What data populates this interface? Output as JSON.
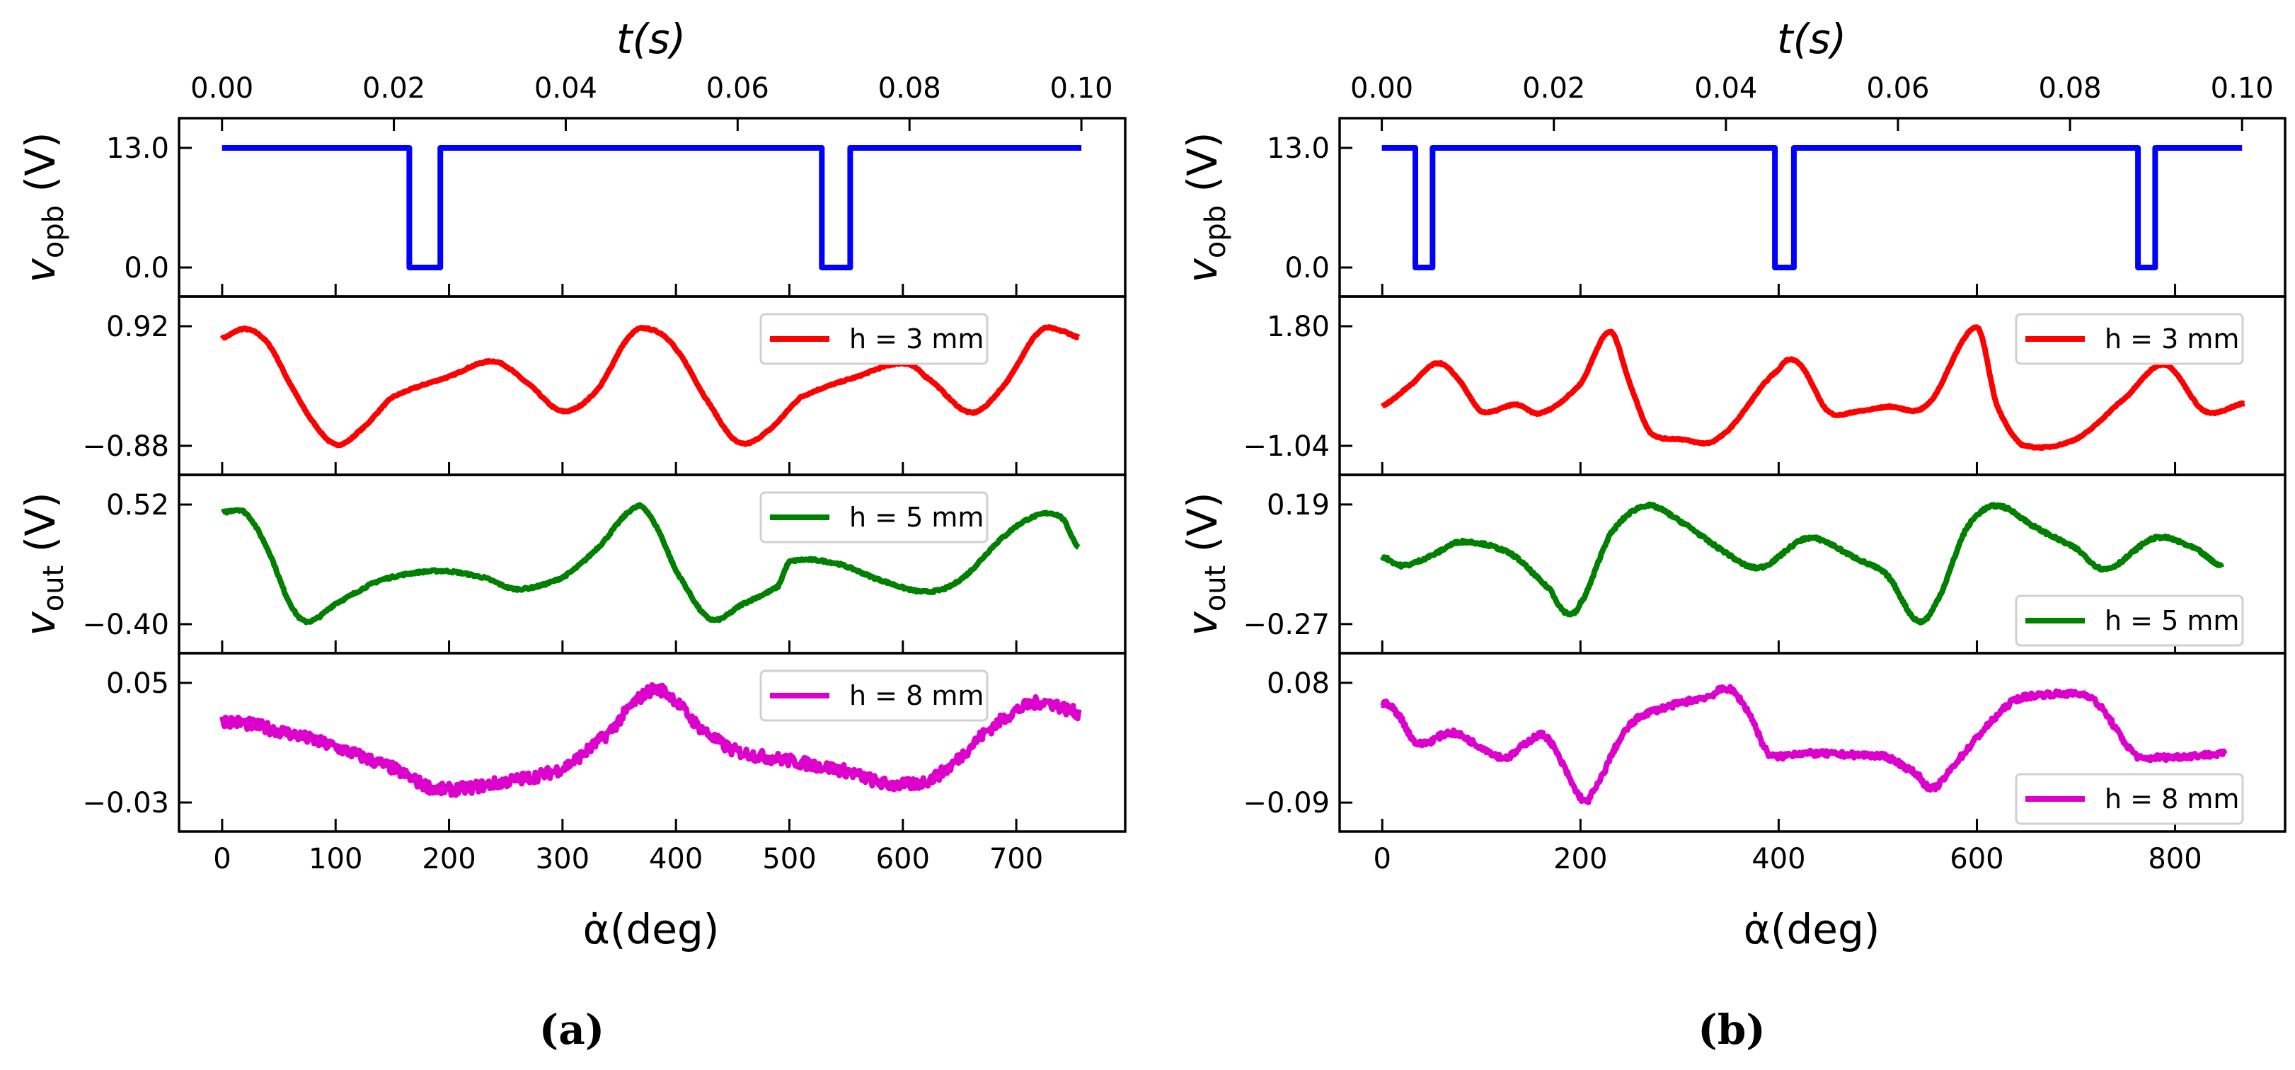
{
  "chart_data": [
    {
      "type": "line",
      "panel": "a",
      "caption": "(a)",
      "top_axis": {
        "label": "t(s)",
        "ticks": [
          "0.00",
          "0.02",
          "0.04",
          "0.06",
          "0.08",
          "0.10"
        ],
        "lim": [
          -0.005,
          0.1051
        ]
      },
      "bottom_axis": {
        "label": "α̇(deg)",
        "ticks": [
          "0",
          "100",
          "200",
          "300",
          "400",
          "500",
          "600",
          "700"
        ],
        "lim": [
          -38,
          796
        ]
      },
      "ylabels": [
        {
          "var": "v",
          "sub": "opb",
          "unit": " (V)"
        },
        {
          "var": "v",
          "sub": "out",
          "unit": " (V)"
        }
      ],
      "subplots": [
        {
          "yticks": [
            "13.0",
            "0.0"
          ],
          "ytick_values": [
            13.0,
            0.0
          ],
          "ylim": [
            -3.15,
            16.23
          ],
          "series": {
            "name": "v_opb",
            "color": "#0000ff",
            "x_axis": "t",
            "x": [
              0.0,
              0.0218,
              0.0218,
              0.0254,
              0.0254,
              0.0698,
              0.0698,
              0.0731,
              0.0731,
              0.1
            ],
            "y": [
              13,
              13,
              0,
              0,
              13,
              13,
              0,
              0,
              13,
              13
            ],
            "noise": 0
          }
        },
        {
          "yticks": [
            "0.92",
            "−0.88"
          ],
          "ytick_values": [
            0.92,
            -0.88
          ],
          "ylim": [
            -1.317,
            1.367
          ],
          "legend": {
            "label": "h = 3 mm",
            "loc": "upper right"
          },
          "series": {
            "name": "h = 3 mm",
            "color": "#ff0000",
            "x_axis": "deg",
            "x": [
              0,
              20,
              40,
              60,
              80,
              100,
              120,
              150,
              200,
              240,
              270,
              300,
              330,
              360,
              380,
              400,
              430,
              455,
              480,
              510,
              560,
              600,
              620,
              660,
              690,
              720,
              740,
              755
            ],
            "y": [
              0.74,
              0.88,
              0.67,
              0.05,
              -0.52,
              -0.86,
              -0.67,
              -0.15,
              0.16,
              0.39,
              0.05,
              -0.36,
              -0.05,
              0.78,
              0.86,
              0.57,
              -0.26,
              -0.83,
              -0.67,
              -0.15,
              0.16,
              0.36,
              0.16,
              -0.38,
              0.05,
              0.83,
              0.85,
              0.75
            ],
            "noise": 0.01
          }
        },
        {
          "yticks": [
            "0.52",
            "−0.40"
          ],
          "ytick_values": [
            0.52,
            -0.4
          ],
          "ylim": [
            -0.623,
            0.749
          ],
          "legend": {
            "label": "h = 5 mm",
            "loc": "upper right"
          },
          "series": {
            "name": "h = 5 mm",
            "color": "#008000",
            "x_axis": "deg",
            "x": [
              0,
              20,
              40,
              60,
              75,
              100,
              140,
              190,
              230,
              260,
              300,
              330,
              365,
              380,
              400,
              430,
              460,
              490,
              500,
              540,
              580,
              620,
              650,
              690,
              720,
              740,
              755
            ],
            "y": [
              0.46,
              0.46,
              0.18,
              -0.24,
              -0.38,
              -0.24,
              -0.06,
              0.01,
              -0.04,
              -0.13,
              -0.04,
              0.18,
              0.5,
              0.39,
              0.01,
              -0.36,
              -0.24,
              -0.11,
              0.08,
              0.07,
              -0.06,
              -0.15,
              -0.06,
              0.28,
              0.44,
              0.42,
              0.19
            ],
            "noise": 0.008
          }
        },
        {
          "yticks": [
            "0.05",
            "−0.03"
          ],
          "ytick_values": [
            0.05,
            -0.03
          ],
          "ylim": [
            -0.0494,
            0.0699
          ],
          "legend": {
            "label": "h = 8 mm",
            "loc": "upper right"
          },
          "series": {
            "name": "h = 8 mm",
            "color": "#dd00cc",
            "x_axis": "deg",
            "x": [
              0,
              50,
              100,
              150,
              190,
              250,
              300,
              340,
              370,
              390,
              420,
              450,
              500,
              550,
              590,
              630,
              680,
              720,
              755
            ],
            "y": [
              0.025,
              0.018,
              0.007,
              -0.007,
              -0.021,
              -0.016,
              -0.007,
              0.016,
              0.041,
              0.044,
              0.021,
              0.005,
              -0.002,
              -0.009,
              -0.018,
              -0.012,
              0.021,
              0.037,
              0.03
            ],
            "noise": 0.004
          }
        }
      ]
    },
    {
      "type": "line",
      "panel": "b",
      "caption": "(b)",
      "top_axis": {
        "label": "t(s)",
        "ticks": [
          "0.00",
          "0.02",
          "0.04",
          "0.06",
          "0.08",
          "0.10"
        ],
        "lim": [
          -0.0049,
          0.105
        ]
      },
      "bottom_axis": {
        "label": "α̇(deg)",
        "ticks": [
          "0",
          "200",
          "400",
          "600",
          "800"
        ],
        "lim": [
          -43,
          911
        ]
      },
      "ylabels": [
        {
          "var": "v",
          "sub": "opb",
          "unit": " (V)"
        },
        {
          "var": "v",
          "sub": "out",
          "unit": " (V)"
        }
      ],
      "subplots": [
        {
          "yticks": [
            "13.0",
            "0.0"
          ],
          "ytick_values": [
            13.0,
            0.0
          ],
          "ylim": [
            -3.15,
            16.23
          ],
          "series": {
            "name": "v_opb",
            "color": "#0000ff",
            "x_axis": "t",
            "x": [
              0.0,
              0.0039,
              0.0039,
              0.0059,
              0.0059,
              0.0457,
              0.0457,
              0.0479,
              0.0479,
              0.0879,
              0.0879,
              0.0899,
              0.0899,
              0.1
            ],
            "y": [
              13,
              13,
              0,
              0,
              13,
              13,
              0,
              0,
              13,
              13,
              0,
              0,
              13,
              13
            ],
            "noise": 0
          }
        },
        {
          "yticks": [
            "1.80",
            "−1.04"
          ],
          "ytick_values": [
            1.8,
            -1.04
          ],
          "ylim": [
            -1.729,
            2.506
          ],
          "legend": {
            "label": "h = 3 mm",
            "loc": "upper right"
          },
          "series": {
            "name": "h = 3 mm",
            "color": "#ff0000",
            "x_axis": "deg",
            "x": [
              0,
              30,
              55,
              75,
              100,
              135,
              160,
              200,
              230,
              250,
              270,
              300,
              340,
              400,
              420,
              450,
              480,
              510,
              550,
              600,
              620,
              645,
              700,
              750,
              790,
              830,
              870
            ],
            "y": [
              -0.09,
              0.43,
              0.92,
              0.59,
              -0.22,
              -0.06,
              -0.26,
              0.43,
              1.67,
              0.43,
              -0.71,
              -0.88,
              -0.84,
              0.76,
              0.92,
              -0.22,
              -0.22,
              -0.11,
              -0.06,
              1.77,
              -0.06,
              -1.01,
              -0.88,
              0.1,
              0.89,
              -0.22,
              -0.03
            ],
            "noise": 0.015
          }
        },
        {
          "yticks": [
            "0.19",
            "−0.27"
          ],
          "ytick_values": [
            0.19,
            -0.27
          ],
          "ylim": [
            -0.382,
            0.304
          ],
          "legend": {
            "label": "h = 5 mm",
            "loc": "lower right"
          },
          "series": {
            "name": "h = 5 mm",
            "color": "#008000",
            "x_axis": "deg",
            "x": [
              0,
              20,
              50,
              80,
              130,
              170,
              185,
              200,
              230,
              265,
              300,
              340,
              380,
              430,
              480,
              510,
              540,
              560,
              590,
              620,
              660,
              700,
              730,
              780,
              820,
              847
            ],
            "y": [
              -0.011,
              -0.045,
              -0.006,
              0.047,
              0.0,
              -0.138,
              -0.225,
              -0.19,
              0.074,
              0.185,
              0.127,
              0.021,
              -0.053,
              0.061,
              -0.019,
              -0.085,
              -0.257,
              -0.178,
              0.1,
              0.185,
              0.1,
              0.021,
              -0.058,
              0.061,
              0.021,
              -0.048
            ],
            "noise": 0.005
          }
        },
        {
          "yticks": [
            "0.08",
            "−0.09"
          ],
          "ytick_values": [
            0.08,
            -0.09
          ],
          "ylim": [
            -0.131,
            0.122
          ],
          "legend": {
            "label": "h = 8 mm",
            "loc": "lower right"
          },
          "series": {
            "name": "h = 8 mm",
            "color": "#dd00cc",
            "x_axis": "deg",
            "x": [
              0,
              15,
              35,
              70,
              100,
              125,
              150,
              165,
              180,
              200,
              210,
              240,
              260,
              290,
              330,
              350,
              370,
              390,
              420,
              470,
              510,
              540,
              555,
              580,
              610,
              640,
              700,
              720,
              760,
              780,
              850
            ],
            "y": [
              0.052,
              0.037,
              -0.006,
              0.009,
              -0.011,
              -0.026,
              -0.001,
              0.004,
              -0.031,
              -0.082,
              -0.08,
              -0.001,
              0.032,
              0.047,
              0.061,
              0.071,
              0.037,
              -0.021,
              -0.02,
              -0.022,
              -0.026,
              -0.05,
              -0.07,
              -0.031,
              0.018,
              0.057,
              0.064,
              0.052,
              -0.021,
              -0.026,
              -0.021
            ],
            "noise": 0.004
          }
        }
      ]
    }
  ]
}
